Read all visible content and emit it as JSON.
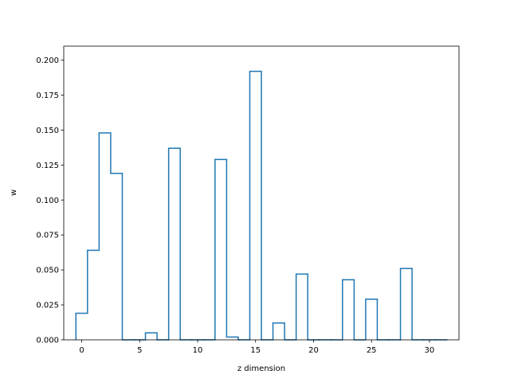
{
  "chart_data": {
    "type": "step",
    "xlabel": "z dimension",
    "ylabel": "w",
    "xlim": [
      -1.55,
      32.55
    ],
    "ylim": [
      0,
      0.21
    ],
    "xticks": [
      0,
      5,
      10,
      15,
      20,
      25,
      30
    ],
    "xtick_labels": [
      "0",
      "5",
      "10",
      "15",
      "20",
      "25",
      "30"
    ],
    "yticks": [
      0,
      0.025,
      0.05,
      0.075,
      0.1,
      0.125,
      0.15,
      0.175,
      0.2
    ],
    "ytick_labels": [
      "0.000",
      "0.025",
      "0.050",
      "0.075",
      "0.100",
      "0.125",
      "0.150",
      "0.175",
      "0.200"
    ],
    "grid": false,
    "series": [
      {
        "color": "#1f77b4",
        "x": [
          0,
          1,
          2,
          3,
          4,
          5,
          6,
          7,
          8,
          9,
          10,
          11,
          12,
          13,
          14,
          15,
          16,
          17,
          18,
          19,
          20,
          21,
          22,
          23,
          24,
          25,
          26,
          27,
          28,
          29,
          30,
          31
        ],
        "values": [
          0.019,
          0.064,
          0.148,
          0.119,
          0.0,
          0.0,
          0.005,
          0.0,
          0.137,
          0.0,
          0.0,
          0.0,
          0.129,
          0.002,
          0.0,
          0.192,
          0.0,
          0.012,
          0.0,
          0.047,
          0.0,
          0.0,
          0.0,
          0.043,
          0.0,
          0.029,
          0.0,
          0.0,
          0.051,
          0.0,
          0.0,
          0.0
        ]
      }
    ]
  }
}
